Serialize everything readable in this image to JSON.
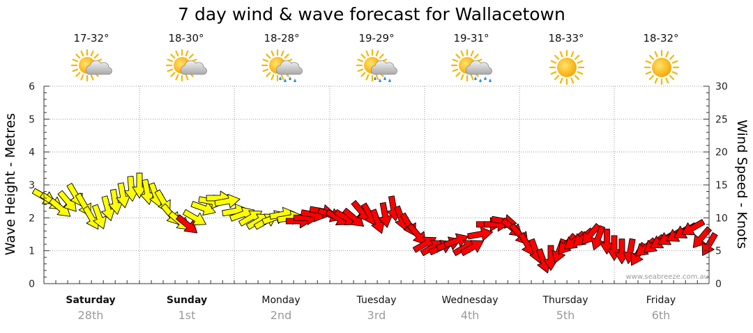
{
  "chart_data": {
    "type": "line",
    "title": "7 day wind & wave forecast for Wallacetown",
    "y_left": {
      "label": "Wave Height - Metres",
      "range": [
        0,
        6
      ],
      "ticks": [
        0,
        1,
        2,
        3,
        4,
        5,
        6
      ]
    },
    "y_right": {
      "label": "Wind Speed - Knots",
      "range": [
        0,
        30
      ],
      "ticks": [
        0,
        5,
        10,
        15,
        20,
        25,
        30
      ]
    },
    "grid": true,
    "days": [
      {
        "day": "Saturday",
        "date": "28th",
        "temp": "17-32°",
        "weather": "partly-cloudy-icon",
        "bold": true
      },
      {
        "day": "Sunday",
        "date": "1st",
        "temp": "18-30°",
        "weather": "partly-cloudy-icon",
        "bold": true
      },
      {
        "day": "Monday",
        "date": "2nd",
        "temp": "18-28°",
        "weather": "showers-icon",
        "bold": false
      },
      {
        "day": "Tuesday",
        "date": "3rd",
        "temp": "19-29°",
        "weather": "showers-icon",
        "bold": false
      },
      {
        "day": "Wednesday",
        "date": "4th",
        "temp": "19-31°",
        "weather": "possible-shower-icon",
        "bold": false
      },
      {
        "day": "Thursday",
        "date": "5th",
        "temp": "18-33°",
        "weather": "sunny-icon",
        "bold": false
      },
      {
        "day": "Friday",
        "date": "6th",
        "temp": "18-32°",
        "weather": "sunny-icon",
        "bold": false
      }
    ],
    "series": [
      {
        "type": "wind",
        "unit": "knots",
        "x_day_offset": [
          0.0,
          0.08,
          0.17,
          0.25,
          0.33,
          0.42,
          0.5,
          0.58,
          0.67,
          0.75,
          0.83,
          0.92,
          1.0,
          1.08,
          1.17,
          1.25,
          1.33,
          1.42,
          1.5,
          1.58,
          1.67,
          1.75,
          1.83,
          1.92,
          2.0,
          2.08,
          2.17,
          2.25,
          2.33,
          2.42,
          2.5,
          2.58,
          2.67,
          2.75,
          2.83,
          2.92,
          3.0,
          3.08,
          3.17,
          3.25,
          3.33,
          3.42,
          3.5,
          3.58,
          3.67,
          3.75,
          3.83,
          3.92,
          4.0,
          4.08,
          4.17,
          4.25,
          4.33,
          4.42,
          4.5,
          4.58,
          4.67,
          4.75,
          4.83,
          4.92,
          5.0,
          5.08,
          5.17,
          5.25,
          5.33,
          5.42,
          5.5,
          5.58,
          5.67,
          5.75,
          5.83,
          5.92,
          6.0,
          6.08,
          6.17,
          6.25,
          6.33,
          6.42,
          6.5,
          6.58,
          6.67,
          6.75,
          6.83,
          6.92,
          7.0
        ],
        "speed": [
          13.2,
          12.5,
          11.5,
          12.5,
          13.5,
          12.0,
          10.0,
          10.2,
          11.5,
          12.5,
          13.5,
          14.5,
          15.0,
          14.0,
          13.5,
          12.5,
          10.5,
          9.5,
          9.0,
          10.0,
          11.5,
          12.5,
          13.0,
          12.5,
          11.0,
          10.5,
          10.0,
          9.5,
          9.5,
          10.0,
          10.5,
          10.0,
          9.5,
          10.0,
          10.5,
          11.0,
          10.5,
          10.0,
          10.0,
          10.0,
          11.0,
          10.5,
          9.5,
          10.5,
          11.5,
          10.0,
          9.0,
          7.5,
          6.0,
          5.5,
          5.5,
          6.0,
          6.5,
          5.5,
          5.5,
          7.5,
          9.0,
          9.0,
          9.5,
          8.5,
          7.5,
          6.0,
          5.0,
          3.5,
          4.0,
          5.0,
          6.0,
          6.5,
          7.0,
          7.5,
          7.0,
          6.5,
          5.5,
          5.0,
          5.0,
          4.5,
          5.5,
          6.0,
          6.5,
          7.0,
          7.5,
          8.0,
          8.5,
          7.0,
          6.0
        ],
        "direction_deg": [
          120,
          125,
          130,
          140,
          150,
          150,
          150,
          160,
          165,
          170,
          170,
          175,
          180,
          170,
          160,
          150,
          140,
          130,
          130,
          120,
          110,
          100,
          90,
          80,
          80,
          70,
          60,
          60,
          60,
          70,
          80,
          80,
          90,
          90,
          100,
          100,
          110,
          120,
          120,
          130,
          140,
          150,
          160,
          170,
          170,
          160,
          150,
          140,
          60,
          60,
          65,
          70,
          70,
          60,
          60,
          80,
          90,
          90,
          100,
          130,
          140,
          150,
          160,
          160,
          180,
          200,
          220,
          230,
          230,
          220,
          200,
          180,
          180,
          180,
          190,
          210,
          230,
          230,
          240,
          240,
          240,
          240,
          240,
          220,
          210
        ],
        "yellow_below_knots": 15,
        "yellow_range": [
          [
            0.0,
            1.42
          ],
          [
            1.58,
            2.58
          ]
        ]
      }
    ],
    "watermark": "www.seabreeze.com.au"
  }
}
